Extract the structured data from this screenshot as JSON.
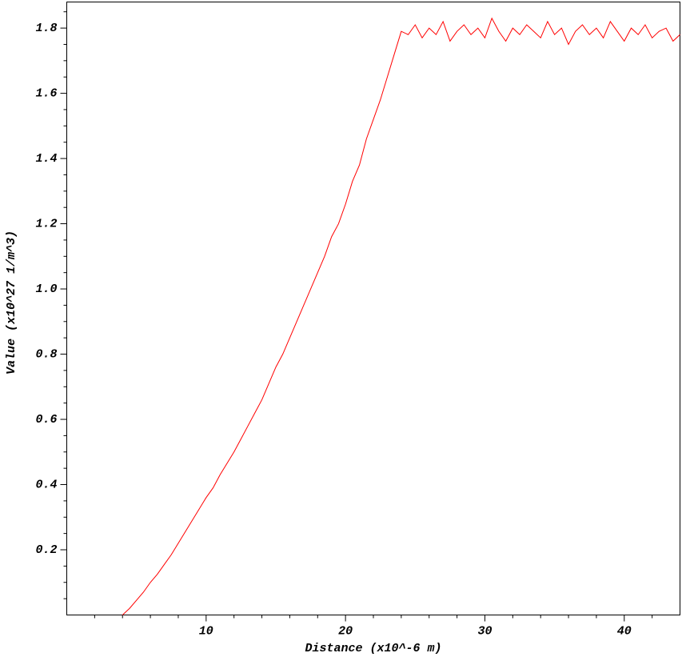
{
  "chart_data": {
    "type": "line",
    "xlabel": "Distance (x10^-6 m)",
    "ylabel": "Value (x10^27 1/m^3)",
    "x": [
      4,
      4.5,
      5,
      5.5,
      6,
      6.5,
      7,
      7.5,
      8,
      8.5,
      9,
      9.5,
      10,
      10.5,
      11,
      11.5,
      12,
      12.5,
      13,
      13.5,
      14,
      14.5,
      15,
      15.5,
      16,
      16.5,
      17,
      17.5,
      18,
      18.5,
      19,
      19.5,
      20,
      20.5,
      21,
      21.5,
      22,
      22.5,
      23,
      23.5,
      24,
      24.5,
      25,
      25.5,
      26,
      26.5,
      27,
      27.5,
      28,
      28.5,
      29,
      29.5,
      30,
      30.5,
      31,
      31.5,
      32,
      32.5,
      33,
      33.5,
      34,
      34.5,
      35,
      35.5,
      36,
      36.5,
      37,
      37.5,
      38,
      38.5,
      39,
      39.5,
      40,
      40.5,
      41,
      41.5,
      42,
      42.5,
      43,
      43.5,
      44
    ],
    "series": [
      {
        "color": "#ff0000",
        "values": [
          0,
          0.02,
          0.045,
          0.07,
          0.1,
          0.125,
          0.155,
          0.185,
          0.22,
          0.255,
          0.29,
          0.325,
          0.36,
          0.39,
          0.43,
          0.465,
          0.5,
          0.54,
          0.58,
          0.62,
          0.66,
          0.71,
          0.76,
          0.8,
          0.85,
          0.9,
          0.95,
          1.0,
          1.05,
          1.1,
          1.16,
          1.2,
          1.26,
          1.33,
          1.38,
          1.46,
          1.52,
          1.58,
          1.65,
          1.72,
          1.79,
          1.78,
          1.81,
          1.77,
          1.8,
          1.78,
          1.82,
          1.76,
          1.79,
          1.81,
          1.78,
          1.8,
          1.77,
          1.83,
          1.79,
          1.76,
          1.8,
          1.78,
          1.81,
          1.79,
          1.77,
          1.82,
          1.78,
          1.8,
          1.75,
          1.79,
          1.81,
          1.78,
          1.8,
          1.77,
          1.82,
          1.79,
          1.76,
          1.8,
          1.78,
          1.81,
          1.77,
          1.79,
          1.8,
          1.76,
          1.78
        ]
      }
    ],
    "xlim": [
      0,
      44
    ],
    "ylim": [
      0,
      1.88
    ],
    "xticks": [
      10,
      20,
      30,
      40
    ],
    "yticks": [
      {
        "value": 0.2,
        "label": "0.2"
      },
      {
        "value": 0.4,
        "label": "0.4"
      },
      {
        "value": 0.6,
        "label": "0.6"
      },
      {
        "value": 0.8,
        "label": "0.8"
      },
      {
        "value": 1.0,
        "label": "1.0"
      },
      {
        "value": 1.2,
        "label": "1.2"
      },
      {
        "value": 1.4,
        "label": "1.4"
      },
      {
        "value": 1.6,
        "label": "1.6"
      },
      {
        "value": 1.8,
        "label": "1.8"
      }
    ],
    "xminorticks": [
      2,
      4,
      6,
      8,
      12,
      14,
      16,
      18,
      22,
      24,
      26,
      28,
      32,
      34,
      36,
      38,
      42
    ],
    "yminorticks": [
      0.05,
      0.1,
      0.15,
      0.25,
      0.3,
      0.35,
      0.45,
      0.5,
      0.55,
      0.65,
      0.7,
      0.75,
      0.85,
      0.9,
      0.95,
      1.05,
      1.1,
      1.15,
      1.25,
      1.3,
      1.35,
      1.45,
      1.5,
      1.55,
      1.65,
      1.7,
      1.75,
      1.85
    ],
    "grid": false
  }
}
